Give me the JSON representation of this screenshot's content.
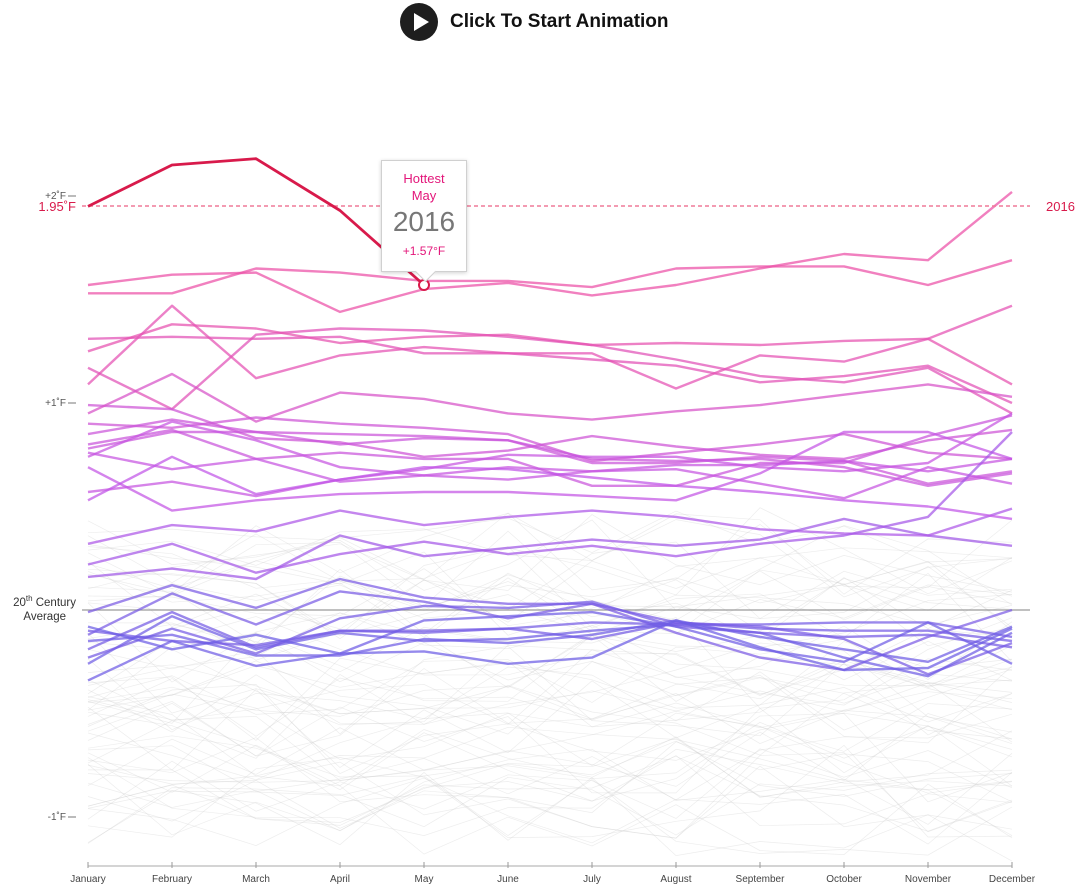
{
  "controls": {
    "play_label": "Click To Start Animation",
    "play_icon": "play-icon"
  },
  "tooltip": {
    "title": "Hottest",
    "month": "May",
    "year": "2016",
    "value": "+1.57°F"
  },
  "reference": {
    "left_label": "1.95˚F",
    "right_label": "2016",
    "value": 1.95
  },
  "average_label": {
    "line1": "20",
    "sup": "th",
    "line1_rest": " Century",
    "line2": "Average"
  },
  "colors": {
    "highlight": "#d81a4b",
    "hot": "#ec4fa6",
    "warm": "#c155e8",
    "cool": "#6a5de4",
    "background_lines": "#cccccc"
  },
  "chart_data": {
    "type": "line",
    "title": "",
    "x": [
      "January",
      "February",
      "March",
      "April",
      "May",
      "June",
      "July",
      "August",
      "September",
      "October",
      "November",
      "December"
    ],
    "xlabel": "",
    "ylabel": "",
    "ylim": [
      -1.1,
      2.55
    ],
    "y_ticks": [
      {
        "value": 2,
        "label": "+2˚F"
      },
      {
        "value": 1,
        "label": "+1˚F"
      },
      {
        "value": -1,
        "label": "-1˚F"
      }
    ],
    "grid": false,
    "highlight_series": {
      "name": "2016",
      "values": [
        1.95,
        2.15,
        2.18,
        1.93,
        1.57
      ]
    },
    "series": [
      {
        "values": [
          1.57,
          1.62,
          1.63,
          1.44,
          1.55,
          1.58,
          1.52,
          1.57,
          1.65,
          1.72,
          1.69,
          2.02
        ]
      },
      {
        "values": [
          1.53,
          1.53,
          1.65,
          1.63,
          1.59,
          1.59,
          1.56,
          1.65,
          1.66,
          1.66,
          1.57,
          1.69
        ]
      },
      {
        "values": [
          1.31,
          1.32,
          1.31,
          1.32,
          1.24,
          1.24,
          1.21,
          1.18,
          1.1,
          1.13,
          1.18,
          1.0
        ]
      },
      {
        "values": [
          1.17,
          0.97,
          1.33,
          1.36,
          1.35,
          1.32,
          1.28,
          1.21,
          1.13,
          1.1,
          1.17,
          0.95
        ]
      },
      {
        "values": [
          1.25,
          1.38,
          1.36,
          1.29,
          1.32,
          1.33,
          1.28,
          1.29,
          1.28,
          1.3,
          1.31,
          1.09
        ]
      },
      {
        "values": [
          1.09,
          1.47,
          1.12,
          1.23,
          1.27,
          1.24,
          1.24,
          1.07,
          1.23,
          1.2,
          1.31,
          1.47
        ]
      },
      {
        "values": [
          0.99,
          0.97,
          0.83,
          0.81,
          0.74,
          0.77,
          0.84,
          0.79,
          0.75,
          0.73,
          0.82,
          0.87
        ]
      },
      {
        "values": [
          0.95,
          1.14,
          0.91,
          1.05,
          1.02,
          0.95,
          0.92,
          0.96,
          0.99,
          1.04,
          1.09,
          1.03
        ]
      },
      {
        "values": [
          0.9,
          0.88,
          0.93,
          0.9,
          0.88,
          0.85,
          0.72,
          0.76,
          0.8,
          0.85,
          0.76,
          0.73
        ]
      },
      {
        "values": [
          0.85,
          0.92,
          0.86,
          0.85,
          0.84,
          0.82,
          0.71,
          0.71,
          0.74,
          0.72,
          0.61,
          0.67
        ]
      },
      {
        "values": [
          0.78,
          0.86,
          0.86,
          0.8,
          0.83,
          0.82,
          0.73,
          0.72,
          0.73,
          0.69,
          0.6,
          0.66
        ]
      },
      {
        "values": [
          0.8,
          0.87,
          0.73,
          0.76,
          0.73,
          0.73,
          0.6,
          0.6,
          0.71,
          0.71,
          0.84,
          0.94
        ]
      },
      {
        "values": [
          0.76,
          0.68,
          0.73,
          0.62,
          0.65,
          0.63,
          0.67,
          0.7,
          0.7,
          0.72,
          0.67,
          0.73
        ]
      },
      {
        "values": [
          0.57,
          0.62,
          0.55,
          0.63,
          0.68,
          0.75,
          0.74,
          0.74,
          0.69,
          0.67,
          0.71,
          0.95
        ]
      },
      {
        "values": [
          0.69,
          0.48,
          0.53,
          0.56,
          0.57,
          0.57,
          0.55,
          0.53,
          0.66,
          0.86,
          0.86,
          0.73
        ]
      },
      {
        "values": [
          0.74,
          0.91,
          0.82,
          0.69,
          0.65,
          0.69,
          0.67,
          0.68,
          0.61,
          0.54,
          0.69,
          0.61
        ]
      },
      {
        "values": [
          0.16,
          0.2,
          0.15,
          0.36,
          0.26,
          0.3,
          0.34,
          0.31,
          0.34,
          0.44,
          0.36,
          0.31
        ]
      },
      {
        "values": [
          0.32,
          0.41,
          0.38,
          0.48,
          0.41,
          0.45,
          0.48,
          0.45,
          0.39,
          0.37,
          0.36,
          0.49
        ]
      },
      {
        "values": [
          0.53,
          0.74,
          0.56,
          0.63,
          0.69,
          0.68,
          0.64,
          0.6,
          0.57,
          0.53,
          0.5,
          0.44
        ]
      },
      {
        "values": [
          0.22,
          0.32,
          0.18,
          0.27,
          0.33,
          0.27,
          0.31,
          0.26,
          0.32,
          0.36,
          0.45,
          0.86
        ]
      },
      {
        "values": [
          -0.01,
          0.12,
          0.01,
          0.15,
          0.06,
          0.03,
          0.03,
          -0.11,
          -0.23,
          -0.29,
          -0.13,
          0.0
        ]
      },
      {
        "values": [
          -0.19,
          -0.01,
          -0.18,
          -0.1,
          -0.1,
          -0.09,
          -0.14,
          -0.06,
          -0.09,
          -0.1,
          -0.1,
          -0.15
        ]
      },
      {
        "values": [
          -0.12,
          0.08,
          -0.07,
          0.09,
          0.04,
          -0.04,
          0.03,
          -0.06,
          -0.08,
          -0.14,
          -0.31,
          -0.16
        ]
      },
      {
        "values": [
          -0.26,
          -0.03,
          -0.19,
          -0.11,
          -0.15,
          -0.14,
          -0.1,
          -0.07,
          -0.11,
          -0.23,
          -0.32,
          -0.11
        ]
      },
      {
        "values": [
          -0.1,
          -0.15,
          -0.17,
          -0.1,
          -0.11,
          -0.09,
          -0.06,
          -0.07,
          -0.07,
          -0.06,
          -0.06,
          -0.13
        ]
      },
      {
        "values": [
          -0.23,
          -0.09,
          -0.21,
          -0.04,
          0.02,
          0.01,
          0.04,
          -0.08,
          -0.11,
          -0.13,
          -0.12,
          -0.18
        ]
      },
      {
        "values": [
          -0.15,
          -0.12,
          -0.22,
          -0.22,
          -0.14,
          -0.16,
          -0.12,
          -0.05,
          -0.13,
          -0.19,
          -0.25,
          -0.08
        ]
      },
      {
        "values": [
          -0.08,
          -0.19,
          -0.12,
          -0.21,
          -0.2,
          -0.26,
          -0.23,
          -0.05,
          -0.18,
          -0.29,
          -0.28,
          -0.09
        ]
      },
      {
        "values": [
          -0.34,
          -0.15,
          -0.27,
          -0.21,
          -0.05,
          -0.03,
          -0.01,
          -0.08,
          -0.19,
          -0.25,
          -0.06,
          -0.26
        ]
      }
    ]
  }
}
